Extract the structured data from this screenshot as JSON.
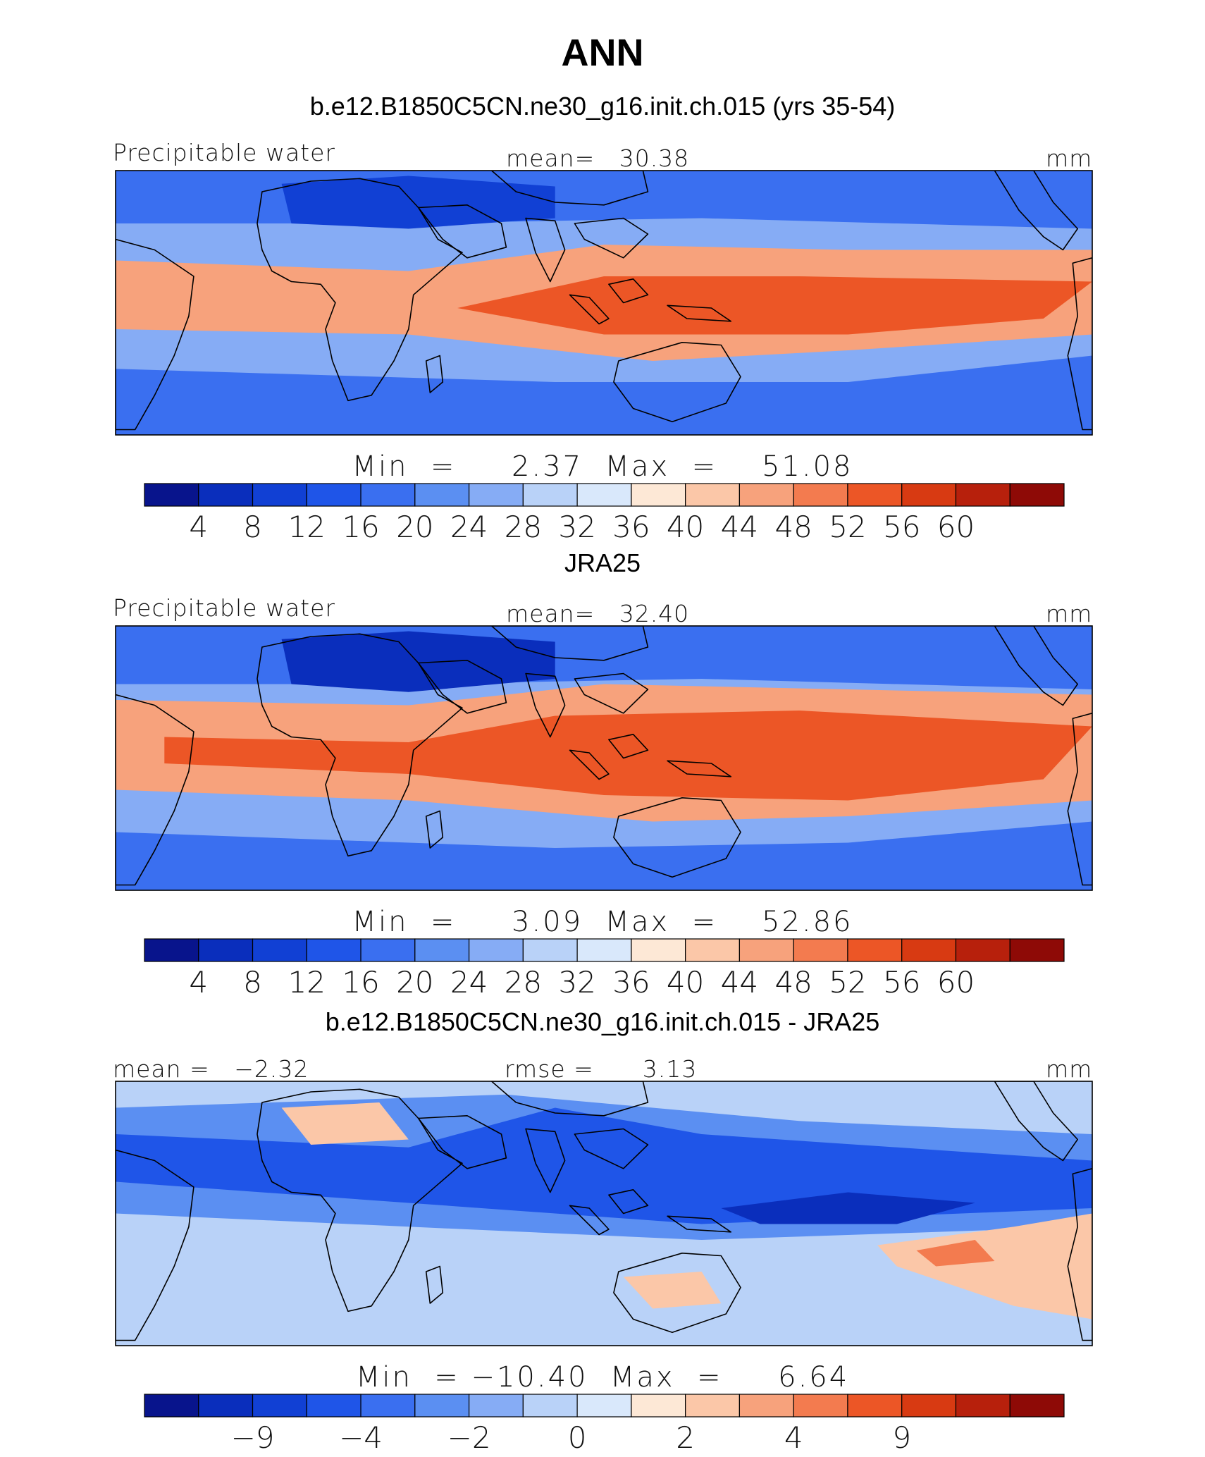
{
  "title": "ANN",
  "chart_data": [
    {
      "type": "heatmap",
      "title": "b.e12.B1850C5CN.ne30_g16.init.ch.015 (yrs 35-54)",
      "left_label": "Precipitable water",
      "center_label": "mean=   30.38",
      "right_label": "mm",
      "stat_label": "Min  =     2.37  Max  =    51.08",
      "min": 2.37,
      "max": 51.08,
      "mean": 30.38,
      "colorbar": {
        "ticks": [
          "4",
          "8",
          "12",
          "16",
          "20",
          "24",
          "28",
          "32",
          "36",
          "40",
          "44",
          "48",
          "52",
          "56",
          "60"
        ],
        "colors": [
          "#08148c",
          "#0a2ebc",
          "#1140d4",
          "#1f55e8",
          "#3a6ff0",
          "#5b8ff2",
          "#86acf5",
          "#b9d2f8",
          "#d9e8fb",
          "#fde8d6",
          "#fbc7a8",
          "#f7a27c",
          "#f37b4f",
          "#ec5626",
          "#d83a12",
          "#b7200c",
          "#8e0a06"
        ]
      }
    },
    {
      "type": "heatmap",
      "title": "JRA25",
      "left_label": "Precipitable water",
      "center_label": "mean=   32.40",
      "right_label": "mm",
      "stat_label": "Min  =     3.09  Max  =    52.86",
      "min": 3.09,
      "max": 52.86,
      "mean": 32.4,
      "colorbar": {
        "ticks": [
          "4",
          "8",
          "12",
          "16",
          "20",
          "24",
          "28",
          "32",
          "36",
          "40",
          "44",
          "48",
          "52",
          "56",
          "60"
        ],
        "colors": [
          "#08148c",
          "#0a2ebc",
          "#1140d4",
          "#1f55e8",
          "#3a6ff0",
          "#5b8ff2",
          "#86acf5",
          "#b9d2f8",
          "#d9e8fb",
          "#fde8d6",
          "#fbc7a8",
          "#f7a27c",
          "#f37b4f",
          "#ec5626",
          "#d83a12",
          "#b7200c",
          "#8e0a06"
        ]
      }
    },
    {
      "type": "heatmap",
      "title": "b.e12.B1850C5CN.ne30_g16.init.ch.015 - JRA25",
      "left_label": "mean =   −2.32",
      "center_label": "rmse =      3.13",
      "right_label": "mm",
      "stat_label": "Min  = −10.40  Max  =     6.64",
      "min": -10.4,
      "max": 6.64,
      "mean": -2.32,
      "rmse": 3.13,
      "colorbar": {
        "ticks": [
          "",
          "−9",
          "",
          "−4",
          "",
          "−2",
          "",
          "0",
          "",
          "2",
          "",
          "4",
          "",
          "9",
          ""
        ],
        "colors": [
          "#08148c",
          "#0a2ebc",
          "#1140d4",
          "#1f55e8",
          "#3a6ff0",
          "#5b8ff2",
          "#86acf5",
          "#b9d2f8",
          "#d9e8fb",
          "#fde8d6",
          "#fbc7a8",
          "#f7a27c",
          "#f37b4f",
          "#ec5626",
          "#d83a12",
          "#b7200c",
          "#8e0a06"
        ]
      }
    }
  ],
  "colors": {
    "land_outline": "#000000",
    "panel1": {
      "base": "#86acf5",
      "band1": "#f7a27c",
      "band2": "#ec5626",
      "ocean_lo": "#3a6ff0",
      "dry": "#1140d4"
    },
    "panel2": {
      "base": "#86acf5",
      "band1": "#f7a27c",
      "band2": "#ec5626",
      "ocean_lo": "#3a6ff0",
      "dry": "#0a2ebc"
    },
    "panel3": {
      "base": "#b9d2f8",
      "neg1": "#5b8ff2",
      "neg2": "#1f55e8",
      "neg3": "#0a2ebc",
      "pos1": "#fbc7a8",
      "pos2": "#f37b4f"
    }
  }
}
